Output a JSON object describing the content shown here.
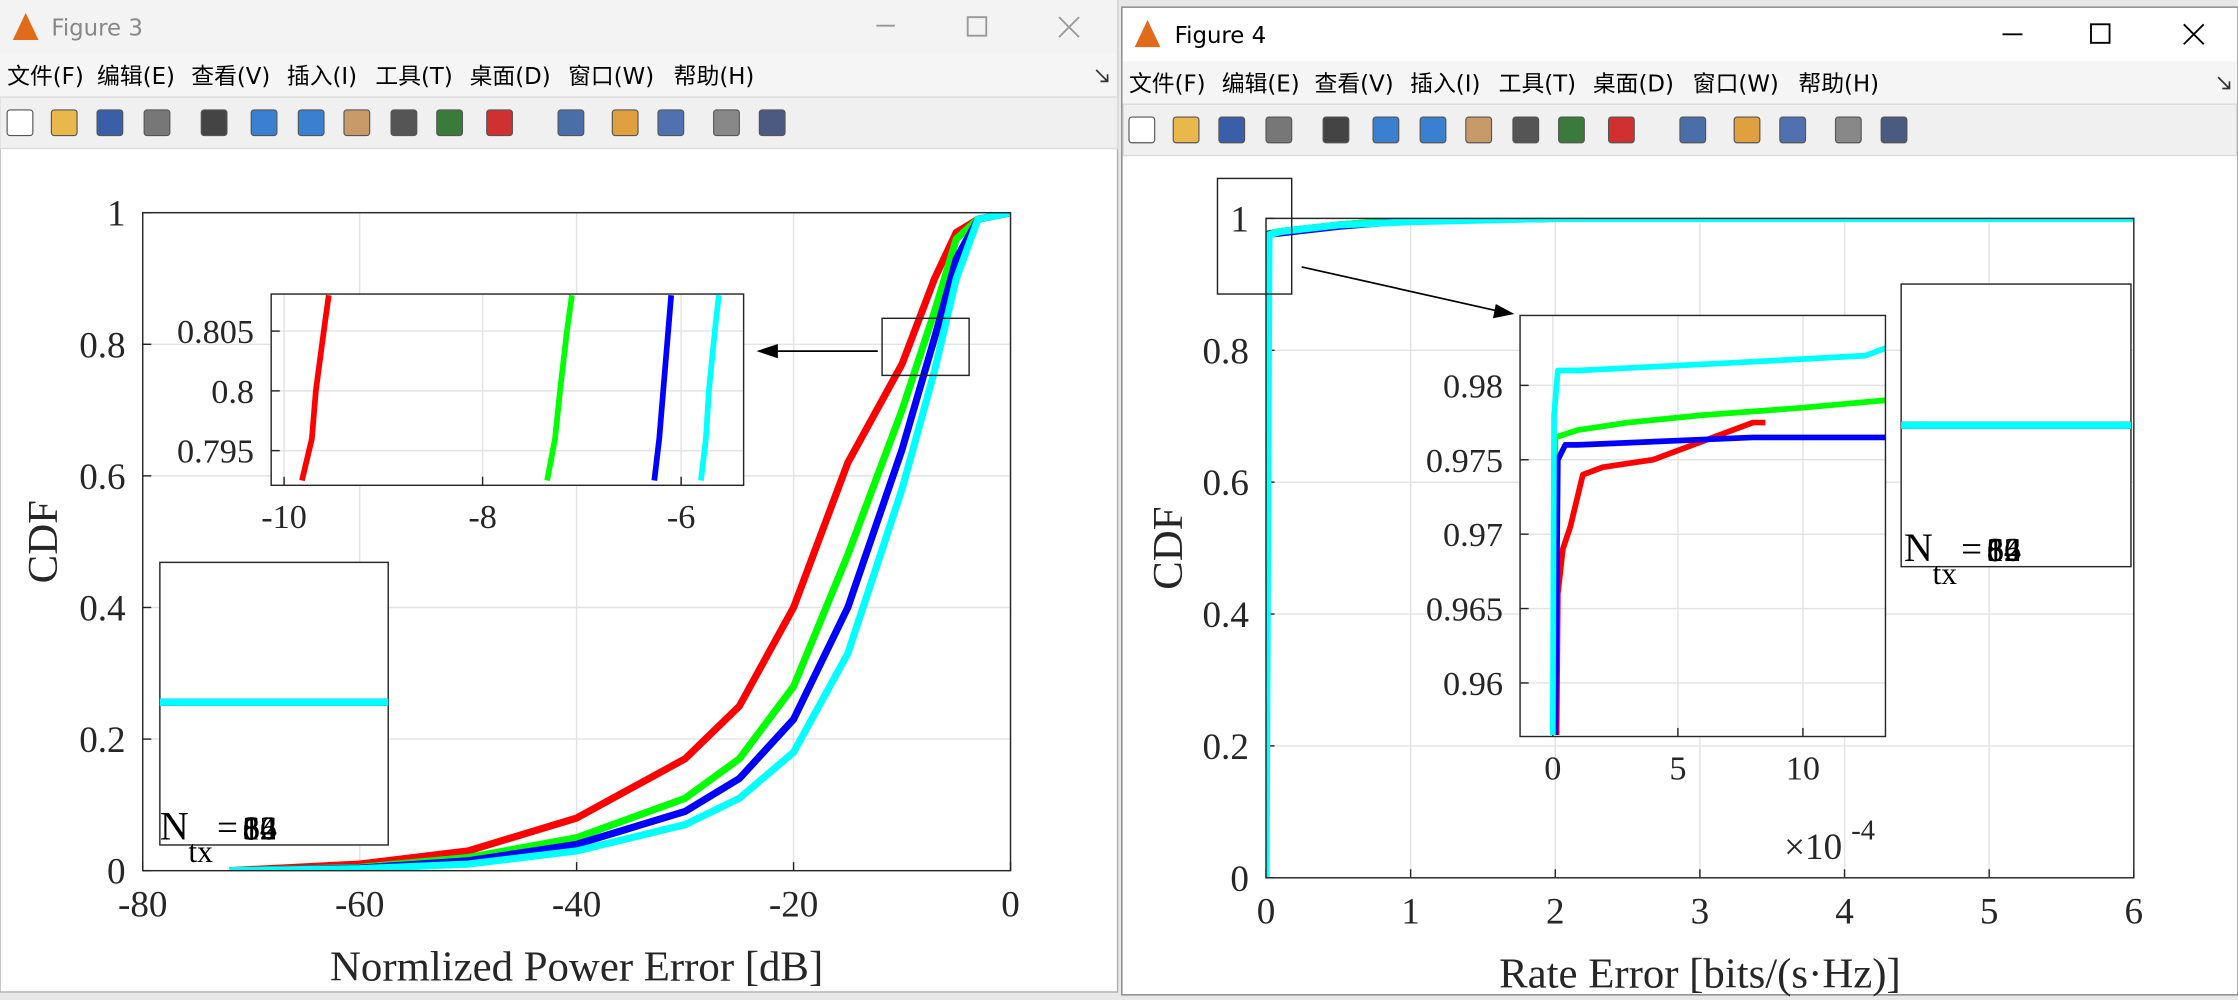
{
  "windows": [
    {
      "title": "Figure 3",
      "menu": [
        "文件(F)",
        "编辑(E)",
        "查看(V)",
        "插入(I)",
        "工具(T)",
        "桌面(D)",
        "窗口(W)",
        "帮助(H)"
      ]
    },
    {
      "title": "Figure 4",
      "menu": [
        "文件(F)",
        "编辑(E)",
        "查看(V)",
        "插入(I)",
        "工具(T)",
        "桌面(D)",
        "窗口(W)",
        "帮助(H)"
      ]
    }
  ],
  "chart_data": [
    {
      "type": "line",
      "xlabel": "Normlized Power Error [dB]",
      "ylabel": "CDF",
      "x": [
        -72,
        -60,
        -50,
        -40,
        -30,
        -25,
        -20,
        -15,
        -10,
        -7,
        -5,
        -3,
        0
      ],
      "series": [
        {
          "name": "8",
          "color": "#ff0000",
          "values": [
            0,
            0.01,
            0.03,
            0.08,
            0.17,
            0.25,
            0.4,
            0.62,
            0.77,
            0.9,
            0.97,
            0.99,
            1
          ]
        },
        {
          "name": "16",
          "color": "#00ff00",
          "values": [
            0,
            0.005,
            0.02,
            0.05,
            0.11,
            0.17,
            0.28,
            0.48,
            0.7,
            0.85,
            0.96,
            0.99,
            1
          ]
        },
        {
          "name": "32",
          "color": "#0000ff",
          "values": [
            0,
            0.004,
            0.015,
            0.04,
            0.09,
            0.14,
            0.23,
            0.4,
            0.64,
            0.81,
            0.93,
            0.99,
            1
          ]
        },
        {
          "name": "64",
          "color": "#00ffff",
          "values": [
            0,
            0.003,
            0.01,
            0.03,
            0.07,
            0.11,
            0.18,
            0.33,
            0.58,
            0.76,
            0.9,
            0.99,
            1
          ]
        }
      ],
      "xlim": [
        -80,
        0
      ],
      "xticks": [
        -80,
        -60,
        -40,
        -20,
        0
      ],
      "ylim": [
        0,
        1
      ],
      "yticks": [
        0,
        0.2,
        0.4,
        0.6,
        0.8,
        1
      ],
      "grid": true,
      "legend": {
        "label": "N",
        "subscript": "tx",
        "equals": "="
      }
    },
    {
      "type": "line",
      "series": [
        {
          "color": "#ff0000",
          "x": [
            -9.82,
            -9.72,
            -9.68,
            -9.6,
            -9.55
          ],
          "values": [
            0.7925,
            0.796,
            0.8,
            0.805,
            0.808
          ]
        },
        {
          "color": "#00ff00",
          "x": [
            -7.35,
            -7.27,
            -7.22,
            -7.15,
            -7.1
          ],
          "values": [
            0.7925,
            0.796,
            0.8,
            0.805,
            0.808
          ]
        },
        {
          "color": "#0000ff",
          "x": [
            -6.27,
            -6.22,
            -6.18,
            -6.13,
            -6.1
          ],
          "values": [
            0.7925,
            0.796,
            0.8,
            0.805,
            0.808
          ]
        },
        {
          "color": "#00ffff",
          "x": [
            -5.8,
            -5.75,
            -5.72,
            -5.66,
            -5.62
          ],
          "values": [
            0.7925,
            0.796,
            0.8,
            0.805,
            0.808
          ]
        }
      ],
      "xlim": [
        -10.13,
        -5.37
      ],
      "xticks": [
        -10,
        -8,
        -6
      ],
      "ylim": [
        0.7921,
        0.8081
      ],
      "yticks": [
        0.795,
        0.8,
        0.805
      ],
      "grid": true
    },
    {
      "type": "line",
      "xlabel": "Rate Error [bits/(s·Hz)]",
      "ylabel": "CDF",
      "x": [
        0,
        0.01,
        0.02,
        0.1,
        0.5,
        1,
        2,
        6
      ],
      "series": [
        {
          "name": "8",
          "color": "#ff0000",
          "values": [
            0.96,
            0.97,
            0.975,
            0.98,
            0.99,
            0.998,
            1,
            1
          ]
        },
        {
          "name": "16",
          "color": "#00ff00",
          "values": [
            0.97,
            0.976,
            0.977,
            0.98,
            0.99,
            0.998,
            1,
            1
          ]
        },
        {
          "name": "32",
          "color": "#0000ff",
          "values": [
            0.97,
            0.975,
            0.976,
            0.978,
            0.988,
            0.997,
            1,
            1
          ]
        },
        {
          "name": "64",
          "color": "#00ffff",
          "values": [
            0,
            0.5,
            0.975,
            0.98,
            0.99,
            0.995,
            1,
            1
          ]
        }
      ],
      "xlim": [
        0,
        6
      ],
      "xticks": [
        0,
        1,
        2,
        3,
        4,
        5,
        6
      ],
      "ylim": [
        0,
        1
      ],
      "yticks": [
        0,
        0.2,
        0.4,
        0.6,
        0.8,
        1
      ],
      "grid": true,
      "legend": {
        "label": "N",
        "subscript": "tx",
        "equals": "="
      }
    },
    {
      "type": "line",
      "series": [
        {
          "color": "#ff0000",
          "x": [
            0.15,
            0.2,
            0.4,
            0.7,
            1.2,
            2,
            4,
            8,
            8.5
          ],
          "values": [
            0.9565,
            0.966,
            0.969,
            0.9705,
            0.974,
            0.9745,
            0.975,
            0.9775,
            0.9775
          ]
        },
        {
          "color": "#00ff00",
          "x": [
            0.05,
            0.1,
            1,
            3,
            6,
            10,
            13.3
          ],
          "values": [
            0.9565,
            0.9765,
            0.977,
            0.9775,
            0.978,
            0.9785,
            0.979
          ]
        },
        {
          "color": "#0000ff",
          "x": [
            0.1,
            0.2,
            0.5,
            1,
            8,
            13.3
          ],
          "values": [
            0.9565,
            0.975,
            0.976,
            0.976,
            0.9765,
            0.9765
          ]
        },
        {
          "color": "#00ffff",
          "x": [
            0,
            0.05,
            0.2,
            1,
            7,
            12.5,
            13.3
          ],
          "values": [
            0.9565,
            0.978,
            0.981,
            0.981,
            0.9815,
            0.982,
            0.9825
          ]
        }
      ],
      "xlim": [
        -1.31,
        13.3
      ],
      "xticks": [
        0,
        5,
        10
      ],
      "ylim": [
        0.9564,
        0.9847
      ],
      "yticks": [
        0.96,
        0.965,
        0.97,
        0.975,
        0.98
      ],
      "grid": true,
      "x_multiplier": {
        "base": "×10",
        "exponent": "-4"
      }
    }
  ]
}
